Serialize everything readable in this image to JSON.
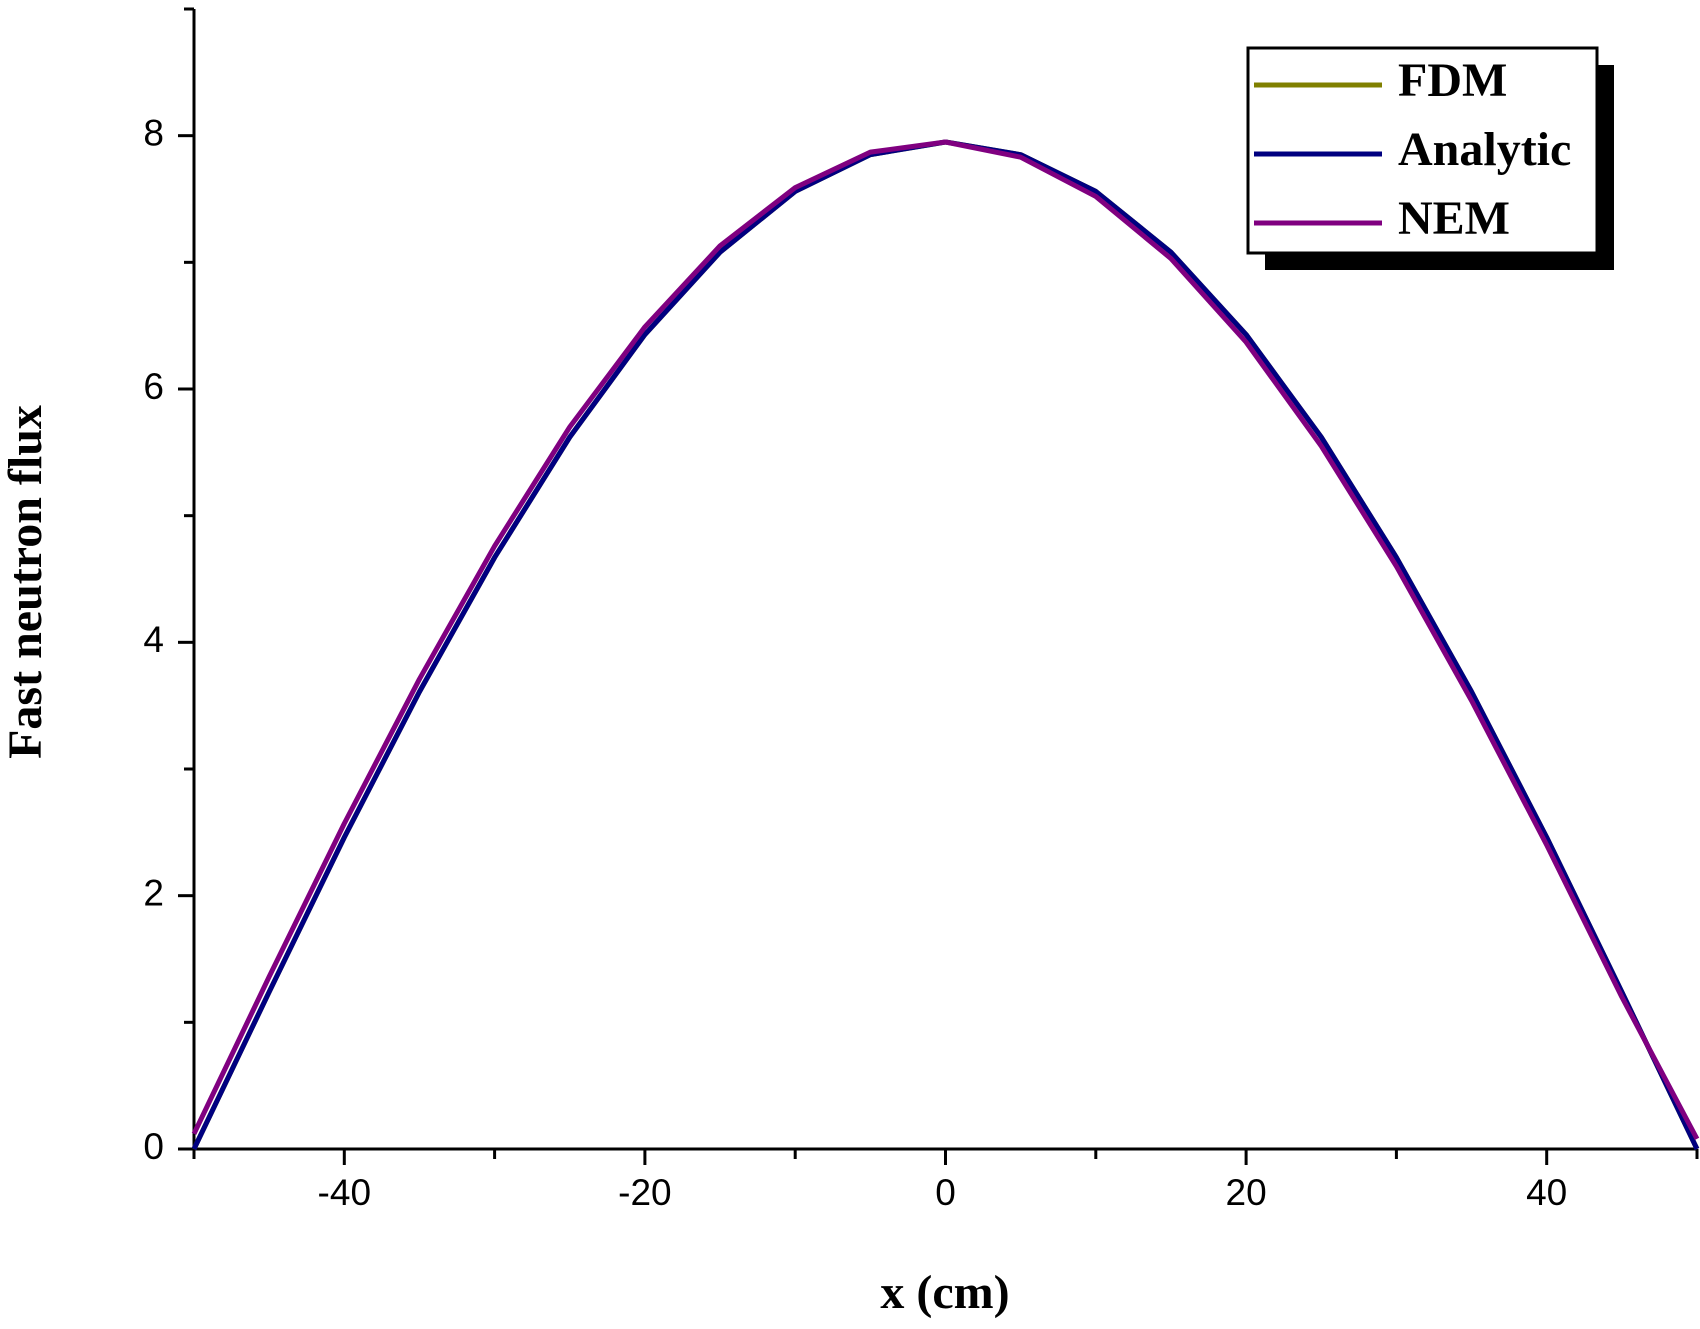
{
  "chart_data": {
    "type": "line",
    "x_label": "x (cm)",
    "y_label": "Fast neutron flux",
    "x": [
      -50,
      -45,
      -40,
      -35,
      -30,
      -25,
      -20,
      -15,
      -10,
      -5,
      0,
      5,
      10,
      15,
      20,
      25,
      30,
      35,
      40,
      45,
      50
    ],
    "series": [
      {
        "name": "FDM",
        "color": "#808000",
        "values": [
          0,
          1.24,
          2.46,
          3.61,
          4.67,
          5.62,
          6.43,
          7.08,
          7.56,
          7.85,
          7.95,
          7.85,
          7.56,
          7.08,
          6.43,
          5.62,
          4.67,
          3.61,
          2.46,
          1.24,
          0
        ]
      },
      {
        "name": "Analytic",
        "color": "#000080",
        "values": [
          0,
          1.24,
          2.46,
          3.61,
          4.67,
          5.62,
          6.43,
          7.08,
          7.56,
          7.85,
          7.95,
          7.85,
          7.56,
          7.08,
          6.43,
          5.62,
          4.67,
          3.61,
          2.46,
          1.24,
          0
        ]
      },
      {
        "name": "NEM",
        "color": "#800080",
        "values": [
          0.12,
          1.36,
          2.57,
          3.71,
          4.76,
          5.7,
          6.49,
          7.13,
          7.59,
          7.87,
          7.95,
          7.83,
          7.52,
          7.03,
          6.37,
          5.55,
          4.6,
          3.54,
          2.4,
          1.2,
          0.08
        ]
      }
    ],
    "xlim": [
      -50,
      50
    ],
    "xticks": [
      -40,
      -20,
      0,
      20,
      40
    ],
    "ylim": [
      0,
      9
    ],
    "yticks": [
      0,
      2,
      4,
      6,
      8
    ],
    "legend": "top-right",
    "grid": false
  }
}
